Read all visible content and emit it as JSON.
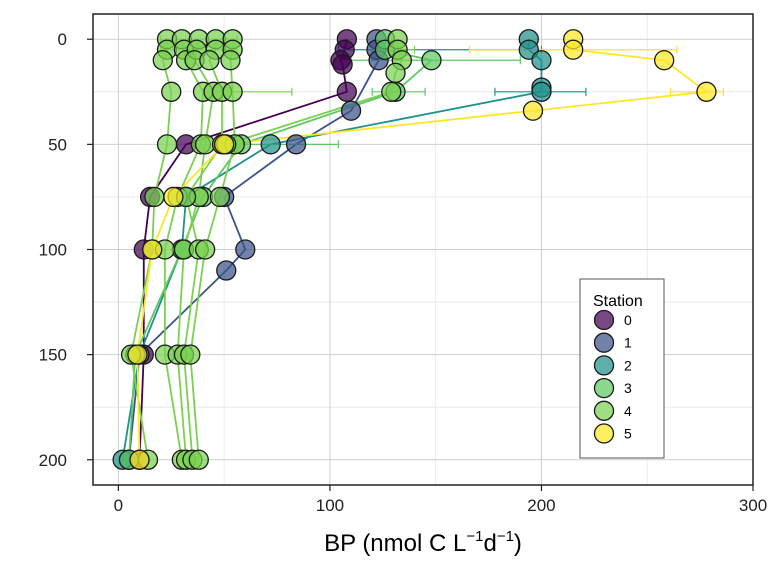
{
  "chart_data": {
    "type": "scatter",
    "xlabel_parts": [
      "BP (nmol C L",
      "−1",
      "d",
      "−1",
      ")"
    ],
    "ylabel": "",
    "xlim": [
      -12,
      300
    ],
    "ylim": [
      212,
      -12
    ],
    "y_reversed": true,
    "x_ticks": [
      0,
      100,
      200,
      300
    ],
    "x_tick_labels": [
      "0",
      "100",
      "200",
      "300"
    ],
    "y_ticks": [
      0,
      50,
      100,
      150,
      200
    ],
    "y_tick_labels": [
      "0",
      "50",
      "100",
      "150",
      "200"
    ],
    "grid": true,
    "legend": {
      "title": "Station",
      "placement": "bottom-right"
    },
    "series": [
      {
        "name": "0",
        "color": "#440154",
        "lines": [
          [
            [
              108,
              0
            ],
            [
              107,
              5
            ],
            [
              105,
              10
            ],
            [
              106,
              12
            ],
            [
              108,
              25
            ],
            [
              32,
              50
            ],
            [
              15,
              75
            ],
            [
              12,
              100
            ],
            [
              12,
              150
            ],
            [
              10,
              200
            ]
          ]
        ],
        "points": [
          [
            108,
            0
          ],
          [
            107,
            5
          ],
          [
            105,
            10
          ],
          [
            106,
            12
          ],
          [
            108,
            25
          ],
          [
            32,
            50
          ],
          [
            15,
            75
          ],
          [
            12,
            100
          ],
          [
            12,
            150
          ],
          [
            10,
            200
          ]
        ],
        "errorbars": []
      },
      {
        "name": "1",
        "color": "#3b528b",
        "lines": [
          [
            [
              122,
              0
            ],
            [
              122,
              5
            ],
            [
              123,
              10
            ],
            [
              110,
              34
            ],
            [
              84,
              50
            ],
            [
              50,
              75
            ],
            [
              60,
              100
            ],
            [
              51,
              110
            ],
            [
              10,
              150
            ],
            [
              5,
              200
            ]
          ]
        ],
        "points": [
          [
            122,
            0
          ],
          [
            122,
            5
          ],
          [
            123,
            10
          ],
          [
            110,
            34
          ],
          [
            84,
            50
          ],
          [
            50,
            75
          ],
          [
            60,
            100
          ],
          [
            51,
            110
          ],
          [
            10,
            150
          ],
          [
            5,
            200
          ]
        ],
        "errorbars": []
      },
      {
        "name": "2",
        "color": "#21918c",
        "lines": [
          [
            [
              194,
              0
            ],
            [
              194,
              5
            ],
            [
              200,
              10
            ],
            [
              200,
              23
            ],
            [
              200,
              25
            ],
            [
              72,
              50
            ],
            [
              32,
              75
            ],
            [
              30,
              100
            ],
            [
              10,
              150
            ],
            [
              2,
              200
            ]
          ]
        ],
        "points": [
          [
            194,
            0
          ],
          [
            194,
            5
          ],
          [
            200,
            10
          ],
          [
            200,
            23
          ],
          [
            200,
            25
          ],
          [
            72,
            50
          ],
          [
            32,
            75
          ],
          [
            30,
            100
          ],
          [
            10,
            150
          ],
          [
            2,
            200
          ]
        ],
        "errorbars": [
          {
            "y": 5,
            "xmin": 104,
            "xmax": 200
          },
          {
            "y": 25,
            "xmin": 178,
            "xmax": 221
          }
        ]
      },
      {
        "name": "3",
        "color": "#5ec962",
        "lines": [
          [
            [
              126,
              0
            ],
            [
              126,
              5
            ],
            [
              148,
              10
            ],
            [
              131,
              25
            ],
            [
              58,
              50
            ],
            [
              40,
              75
            ],
            [
              30,
              100
            ],
            [
              8,
              150
            ],
            [
              5,
              200
            ]
          ]
        ],
        "points": [
          [
            126,
            0
          ],
          [
            126,
            5
          ],
          [
            148,
            10
          ],
          [
            131,
            25
          ],
          [
            58,
            50
          ],
          [
            40,
            75
          ],
          [
            30,
            100
          ],
          [
            8,
            150
          ],
          [
            5,
            200
          ]
        ],
        "errorbars": [
          {
            "y": 10,
            "xmin": 110,
            "xmax": 190
          },
          {
            "y": 25,
            "xmin": 120,
            "xmax": 145
          },
          {
            "y": 50,
            "xmin": 45,
            "xmax": 104
          }
        ]
      },
      {
        "name": "4",
        "color": "#7ad151",
        "lines": [
          [
            [
              23,
              0
            ],
            [
              23,
              5
            ],
            [
              21,
              10
            ],
            [
              25,
              25
            ],
            [
              23,
              50
            ],
            [
              17,
              75
            ],
            [
              16,
              100
            ],
            [
              6,
              150
            ],
            [
              14,
              200
            ]
          ],
          [
            [
              30,
              0
            ],
            [
              31,
              5
            ],
            [
              32,
              10
            ],
            [
              40,
              25
            ],
            [
              39,
              50
            ],
            [
              28,
              75
            ],
            [
              22,
              100
            ],
            [
              22,
              150
            ],
            [
              30,
              200
            ]
          ],
          [
            [
              38,
              0
            ],
            [
              37,
              5
            ],
            [
              36,
              10
            ],
            [
              45,
              25
            ],
            [
              41,
              50
            ],
            [
              38,
              75
            ],
            [
              31,
              100
            ],
            [
              28,
              150
            ],
            [
              32,
              200
            ]
          ],
          [
            [
              46,
              0
            ],
            [
              46,
              5
            ],
            [
              43,
              10
            ],
            [
              49,
              25
            ],
            [
              49,
              50
            ],
            [
              32,
              75
            ],
            [
              38,
              100
            ],
            [
              31,
              150
            ],
            [
              35,
              200
            ]
          ],
          [
            [
              54,
              0
            ],
            [
              54,
              5
            ],
            [
              53,
              10
            ],
            [
              54,
              25
            ],
            [
              55,
              50
            ],
            [
              48,
              75
            ],
            [
              41,
              100
            ],
            [
              34,
              150
            ],
            [
              38,
              200
            ]
          ],
          [
            [
              132,
              0
            ],
            [
              132,
              5
            ],
            [
              134,
              10
            ],
            [
              131,
              16
            ],
            [
              129,
              25
            ],
            [
              51,
              50
            ]
          ]
        ],
        "points": [
          [
            23,
            0
          ],
          [
            23,
            5
          ],
          [
            21,
            10
          ],
          [
            25,
            25
          ],
          [
            23,
            50
          ],
          [
            17,
            75
          ],
          [
            16,
            100
          ],
          [
            6,
            150
          ],
          [
            14,
            200
          ],
          [
            30,
            0
          ],
          [
            31,
            5
          ],
          [
            32,
            10
          ],
          [
            40,
            25
          ],
          [
            39,
            50
          ],
          [
            28,
            75
          ],
          [
            22,
            100
          ],
          [
            22,
            150
          ],
          [
            30,
            200
          ],
          [
            38,
            0
          ],
          [
            37,
            5
          ],
          [
            36,
            10
          ],
          [
            45,
            25
          ],
          [
            41,
            50
          ],
          [
            38,
            75
          ],
          [
            31,
            100
          ],
          [
            28,
            150
          ],
          [
            32,
            200
          ],
          [
            46,
            0
          ],
          [
            46,
            5
          ],
          [
            43,
            10
          ],
          [
            49,
            25
          ],
          [
            49,
            50
          ],
          [
            32,
            75
          ],
          [
            38,
            100
          ],
          [
            31,
            150
          ],
          [
            35,
            200
          ],
          [
            54,
            0
          ],
          [
            54,
            5
          ],
          [
            53,
            10
          ],
          [
            54,
            25
          ],
          [
            55,
            50
          ],
          [
            48,
            75
          ],
          [
            41,
            100
          ],
          [
            34,
            150
          ],
          [
            38,
            200
          ],
          [
            132,
            0
          ],
          [
            132,
            5
          ],
          [
            134,
            10
          ],
          [
            131,
            16
          ],
          [
            129,
            25
          ],
          [
            51,
            50
          ]
        ],
        "errorbars": [
          {
            "y": 0,
            "xmin": 20,
            "xmax": 56
          },
          {
            "y": 5,
            "xmin": 20,
            "xmax": 56
          },
          {
            "y": 25,
            "xmin": 40,
            "xmax": 82
          },
          {
            "y": 5,
            "xmin": 120,
            "xmax": 140
          }
        ]
      },
      {
        "name": "5",
        "color": "#fde725",
        "lines": [
          [
            [
              215,
              0
            ],
            [
              215,
              5
            ],
            [
              258,
              10
            ],
            [
              278,
              25
            ],
            [
              196,
              34
            ],
            [
              50,
              50
            ],
            [
              26,
              75
            ],
            [
              16,
              100
            ],
            [
              9,
              150
            ],
            [
              10,
              200
            ]
          ]
        ],
        "points": [
          [
            215,
            0
          ],
          [
            215,
            5
          ],
          [
            258,
            10
          ],
          [
            278,
            25
          ],
          [
            196,
            34
          ],
          [
            50,
            50
          ],
          [
            26,
            75
          ],
          [
            16,
            100
          ],
          [
            9,
            150
          ],
          [
            10,
            200
          ]
        ],
        "errorbars": [
          {
            "y": 5,
            "xmin": 166,
            "xmax": 264
          },
          {
            "y": 25,
            "xmin": 261,
            "xmax": 286
          }
        ]
      }
    ]
  }
}
